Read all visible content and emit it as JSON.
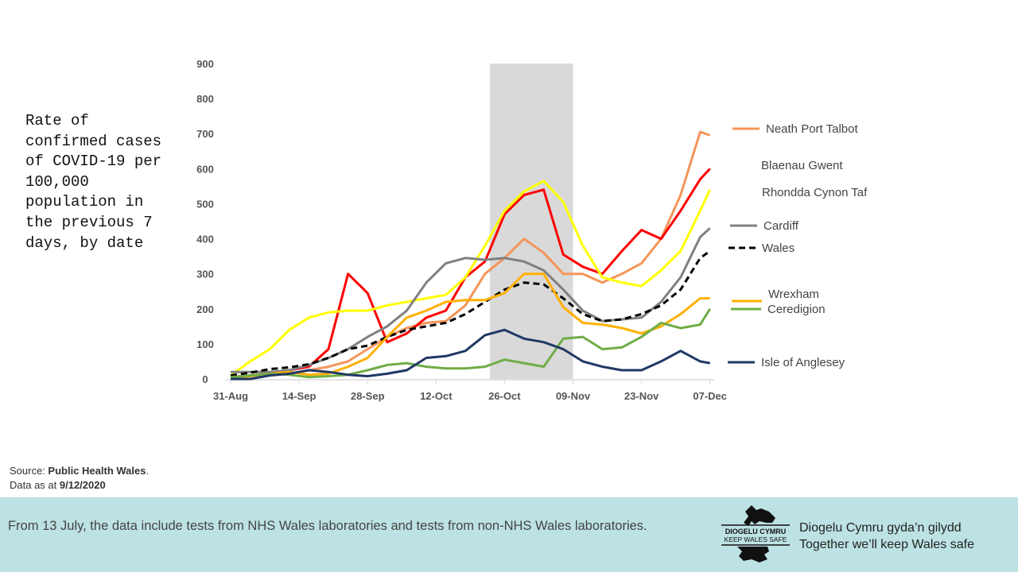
{
  "chart_data": {
    "type": "line",
    "ylabel": "Rate of confirmed cases of COVID-19 per 100,000 population in the previous 7 days, by date",
    "ylim": [
      0,
      900
    ],
    "yticks": [
      "0",
      "100",
      "200",
      "300",
      "400",
      "500",
      "600",
      "700",
      "800",
      "900"
    ],
    "xticks": [
      "31-Aug",
      "14-Sep",
      "28-Sep",
      "12-Oct",
      "26-Oct",
      "09-Nov",
      "23-Nov",
      "07-Dec"
    ],
    "grid": false,
    "legend_placement": "right (labels at line ends)",
    "shaded_period": {
      "start": "23-Oct",
      "end": "09-Nov",
      "color": "#d9d9d9"
    },
    "x": [
      "31-Aug",
      "04-Sep",
      "08-Sep",
      "12-Sep",
      "16-Sep",
      "20-Sep",
      "24-Sep",
      "28-Sep",
      "02-Oct",
      "06-Oct",
      "10-Oct",
      "14-Oct",
      "18-Oct",
      "22-Oct",
      "26-Oct",
      "30-Oct",
      "03-Nov",
      "07-Nov",
      "11-Nov",
      "15-Nov",
      "19-Nov",
      "23-Nov",
      "27-Nov",
      "01-Dec",
      "05-Dec",
      "07-Dec"
    ],
    "series": [
      {
        "name": "Neath Port Talbot",
        "color": "#f4955a",
        "dash": false,
        "values": [
          5,
          10,
          15,
          15,
          25,
          35,
          50,
          85,
          120,
          145,
          160,
          165,
          210,
          300,
          345,
          400,
          360,
          300,
          300,
          275,
          300,
          330,
          400,
          525,
          705,
          695
        ]
      },
      {
        "name": "Blaenau Gwent",
        "color": "#ff0000",
        "dash": false,
        "values": [
          5,
          10,
          15,
          25,
          35,
          85,
          300,
          245,
          105,
          130,
          175,
          195,
          290,
          335,
          470,
          525,
          540,
          355,
          320,
          300,
          365,
          425,
          400,
          480,
          570,
          600
        ]
      },
      {
        "name": "Rhondda Cynon Taf",
        "color": "#ffff00",
        "dash": false,
        "values": [
          10,
          50,
          85,
          140,
          175,
          190,
          195,
          195,
          210,
          220,
          230,
          240,
          290,
          380,
          480,
          535,
          565,
          505,
          380,
          290,
          275,
          265,
          310,
          365,
          480,
          540
        ]
      },
      {
        "name": "Cardiff",
        "color": "#808080",
        "dash": false,
        "values": [
          20,
          20,
          20,
          25,
          40,
          60,
          85,
          120,
          150,
          195,
          275,
          330,
          345,
          340,
          345,
          335,
          310,
          255,
          195,
          165,
          170,
          175,
          220,
          290,
          405,
          430
        ]
      },
      {
        "name": "Wales",
        "color": "#000000",
        "dash": true,
        "values": [
          10,
          18,
          28,
          33,
          42,
          60,
          85,
          95,
          120,
          140,
          150,
          160,
          185,
          220,
          255,
          275,
          270,
          230,
          185,
          165,
          170,
          185,
          210,
          255,
          345,
          365
        ]
      },
      {
        "name": "Wrexham",
        "color": "#ffb000",
        "dash": false,
        "values": [
          3,
          8,
          15,
          20,
          12,
          15,
          35,
          60,
          120,
          175,
          195,
          220,
          225,
          225,
          245,
          300,
          300,
          205,
          160,
          155,
          145,
          130,
          150,
          185,
          230,
          230
        ]
      },
      {
        "name": "Ceredigion",
        "color": "#70ad47",
        "dash": false,
        "values": [
          5,
          10,
          15,
          12,
          5,
          8,
          12,
          25,
          40,
          45,
          35,
          30,
          30,
          35,
          55,
          45,
          35,
          115,
          120,
          85,
          90,
          120,
          160,
          145,
          155,
          200
        ]
      },
      {
        "name": "Isle of Anglesey",
        "color": "#203864",
        "dash": false,
        "values": [
          0,
          0,
          10,
          15,
          25,
          20,
          12,
          8,
          15,
          25,
          60,
          65,
          80,
          125,
          140,
          115,
          105,
          85,
          50,
          35,
          25,
          25,
          50,
          80,
          50,
          45
        ]
      }
    ]
  },
  "source": {
    "prefix": "Source: ",
    "name": "Public Health Wales",
    "suffix": ".",
    "data_prefix": "Data as at ",
    "date": "9/12/2020"
  },
  "footer": {
    "note": "From 13 July, the data include tests from NHS Wales laboratories and tests from non-NHS Wales laboratories.",
    "logo_text": [
      "DIOGELU CYMRU",
      "KEEP WALES SAFE"
    ],
    "slogan_cy": "Diogelu Cymru gyda’n gilydd",
    "slogan_en": "Together we’ll keep Wales safe"
  }
}
